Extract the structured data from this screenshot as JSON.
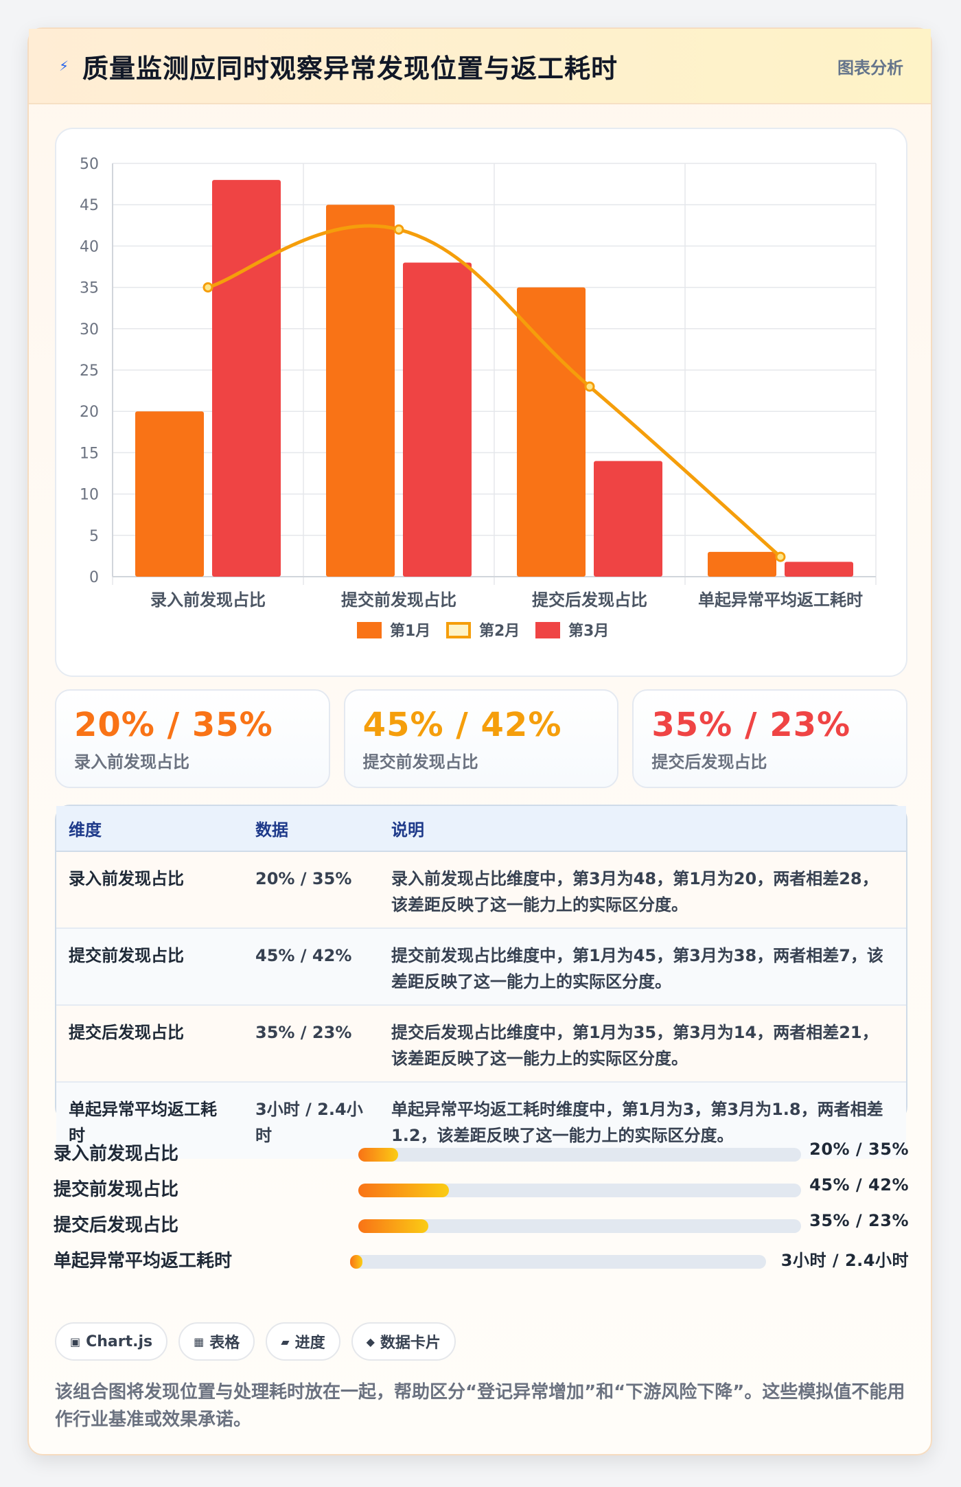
{
  "header": {
    "icon": "bolt-icon",
    "title": "质量监测应同时观察异常发现位置与返工耗时",
    "tag": "图表分析"
  },
  "chart_data": {
    "type": "bar",
    "categories": [
      "录入前发现占比",
      "提交前发现占比",
      "提交后发现占比",
      "单起异常平均返工耗时"
    ],
    "series": [
      {
        "name": "第1月",
        "type": "bar",
        "color": "#f97316",
        "values": [
          20,
          45,
          35,
          3
        ]
      },
      {
        "name": "第2月",
        "type": "line",
        "color": "#f59e0b",
        "values": [
          35,
          42,
          23,
          2.4
        ]
      },
      {
        "name": "第3月",
        "type": "bar",
        "color": "#ef4444",
        "values": [
          48,
          38,
          14,
          1.8
        ]
      }
    ],
    "ylim": [
      0,
      50
    ],
    "yticks": [
      0,
      5,
      10,
      15,
      20,
      25,
      30,
      35,
      40,
      45,
      50
    ],
    "grid": true,
    "legend_position": "bottom"
  },
  "stats": [
    {
      "value": "20% / 35%",
      "label": "录入前发现占比",
      "color": "#f97316"
    },
    {
      "value": "45% / 42%",
      "label": "提交前发现占比",
      "color": "#f59e0b"
    },
    {
      "value": "35% / 23%",
      "label": "提交后发现占比",
      "color": "#ef4444"
    }
  ],
  "table": {
    "headers": [
      "维度",
      "数据",
      "说明"
    ],
    "rows": [
      [
        "录入前发现占比",
        "20% / 35%",
        "录入前发现占比维度中，第3月为48，第1月为20，两者相差28，该差距反映了这一能力上的实际区分度。"
      ],
      [
        "提交前发现占比",
        "45% / 42%",
        "提交前发现占比维度中，第1月为45，第3月为38，两者相差7，该差距反映了这一能力上的实际区分度。"
      ],
      [
        "提交后发现占比",
        "35% / 23%",
        "提交后发现占比维度中，第1月为35，第3月为14，两者相差21，该差距反映了这一能力上的实际区分度。"
      ],
      [
        "单起异常平均返工耗时",
        "3小时 / 2.4小时",
        "单起异常平均返工耗时维度中，第1月为3，第3月为1.8，两者相差1.2，该差距反映了这一能力上的实际区分度。"
      ]
    ]
  },
  "progress": [
    {
      "label": "录入前发现占比",
      "value": "20% / 35%",
      "fill_fraction": 0.09
    },
    {
      "label": "提交前发现占比",
      "value": "45% / 42%",
      "fill_fraction": 0.205
    },
    {
      "label": "提交后发现占比",
      "value": "35% / 23%",
      "fill_fraction": 0.158
    },
    {
      "label": "单起异常平均返工耗时",
      "value": "3小时 / 2.4小时",
      "fill_fraction": 0.03
    }
  ],
  "chips": [
    {
      "icon": "chart-icon",
      "glyph": "▣",
      "label": "Chart.js"
    },
    {
      "icon": "table-icon",
      "glyph": "▦",
      "label": "表格"
    },
    {
      "icon": "progress-icon",
      "glyph": "▰",
      "label": "进度"
    },
    {
      "icon": "card-icon",
      "glyph": "◆",
      "label": "数据卡片"
    }
  ],
  "note": "该组合图将发现位置与处理耗时放在一起，帮助区分“登记异常增加”和“下游风险下降”。这些模拟值不能用作行业基准或效果承诺。"
}
